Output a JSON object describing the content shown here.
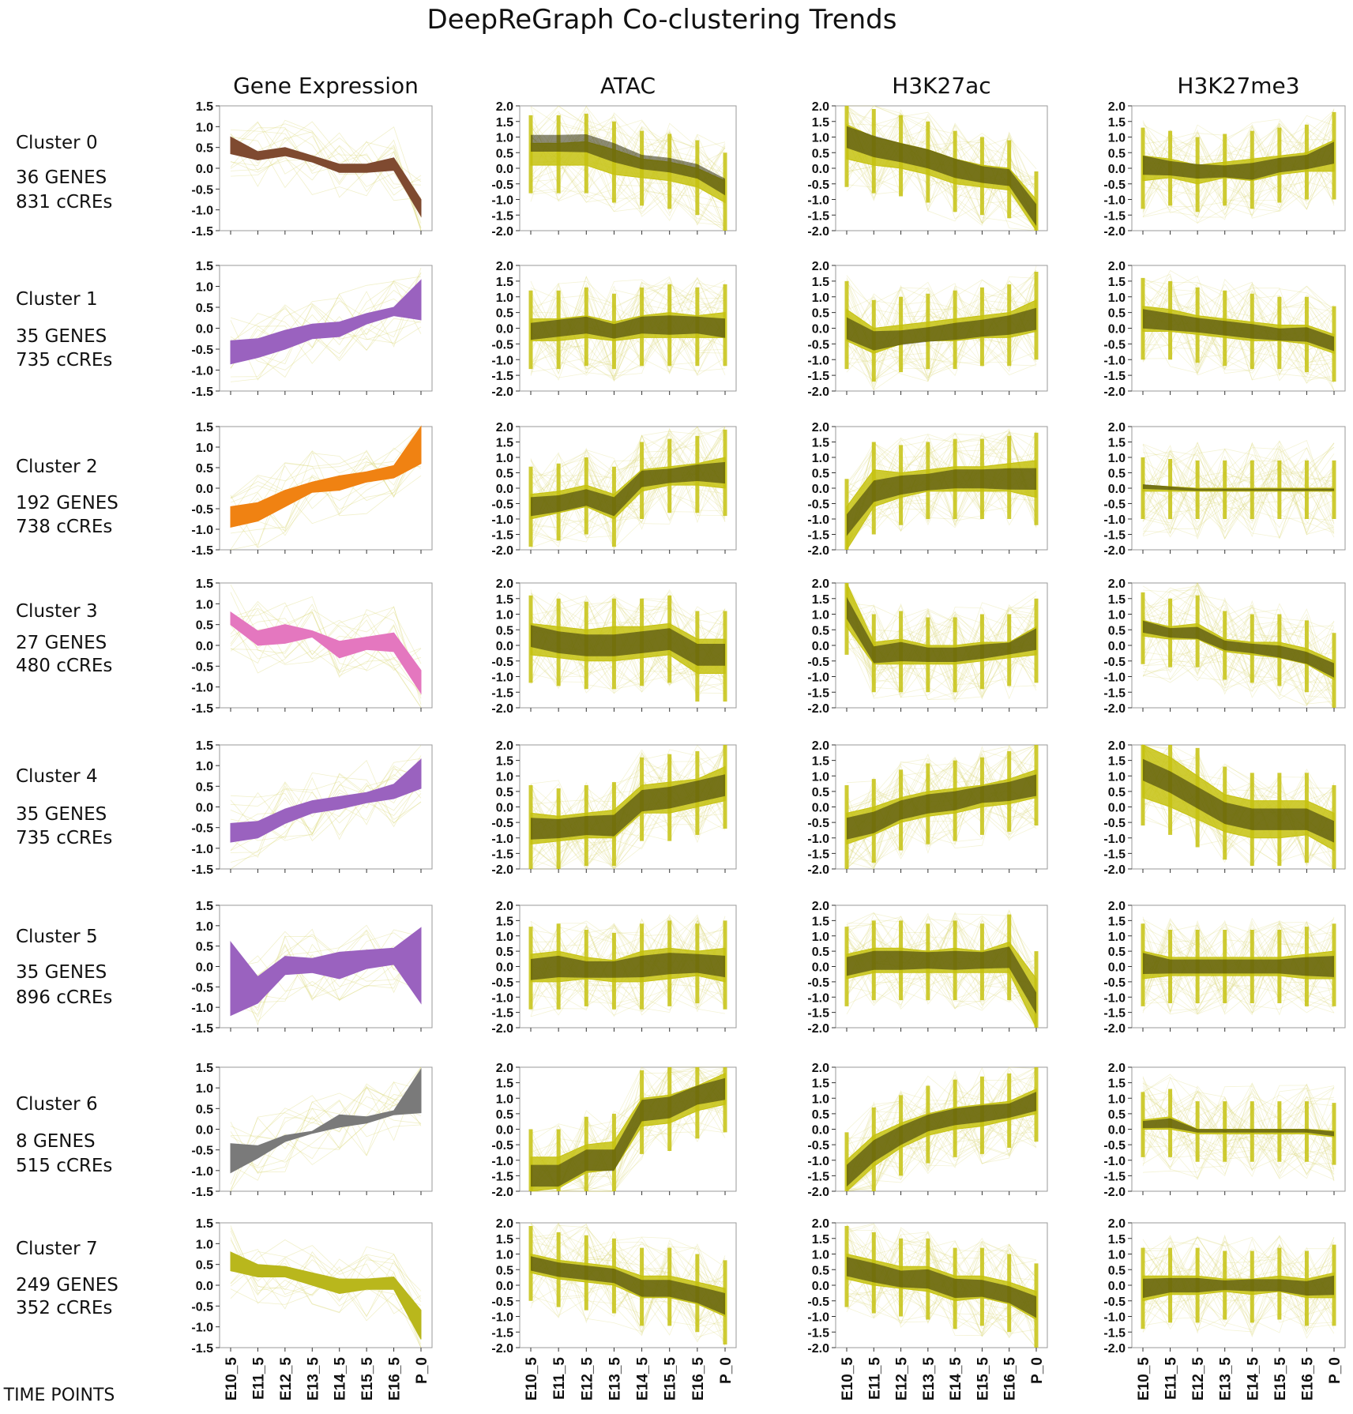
{
  "title": "DeepReGraph Co-clustering Trends",
  "time_points_label": "TIME POINTS",
  "columns": [
    "Gene Expression",
    "ATAC",
    "H3K27ac",
    "H3K27me3"
  ],
  "clusters": [
    {
      "name": "Cluster 0",
      "genes": "36 GENES",
      "ccres": "831 cCREs"
    },
    {
      "name": "Cluster 1",
      "genes": "35 GENES",
      "ccres": "735 cCREs"
    },
    {
      "name": "Cluster 2",
      "genes": "192 GENES",
      "ccres": "738 cCREs"
    },
    {
      "name": "Cluster 3",
      "genes": "27 GENES",
      "ccres": "480 cCREs"
    },
    {
      "name": "Cluster 4",
      "genes": "35 GENES",
      "ccres": "735 cCREs"
    },
    {
      "name": "Cluster 5",
      "genes": "35 GENES",
      "ccres": "896 cCREs"
    },
    {
      "name": "Cluster 6",
      "genes": "8 GENES",
      "ccres": "515 cCREs"
    },
    {
      "name": "Cluster 7",
      "genes": "249 GENES",
      "ccres": "352 cCREs"
    }
  ],
  "colors": {
    "gene": [
      "#7f4a30",
      "#9a62bf",
      "#f08212",
      "#e477bf",
      "#9a62bf",
      "#9a62bf",
      "#7a7a7a",
      "#b9b71c"
    ],
    "epi_light": "#c6c20f",
    "epi_dark": "#2e2c05",
    "trace": "#d8d56a"
  },
  "chart_data": {
    "type": "area",
    "x": [
      "E10_5",
      "E11_5",
      "E12_5",
      "E13_5",
      "E14_5",
      "E15_5",
      "E16_5",
      "P_0"
    ],
    "ylim_gene": [
      -1.5,
      1.5
    ],
    "ylim_epi": [
      -2.0,
      2.0
    ],
    "gene_yticks": [
      "1.5",
      "1.0",
      "0.5",
      "0.0",
      "-0.5",
      "-1.0",
      "-1.5"
    ],
    "epi_yticks": [
      "2.0",
      "1.5",
      "1.0",
      "0.5",
      "0.0",
      "-0.5",
      "-1.0",
      "-1.5",
      "-2.0"
    ],
    "panels": [
      [
        {
          "column": "Gene Expression",
          "lower": [
            0.35,
            0.2,
            0.3,
            0.15,
            -0.1,
            -0.1,
            -0.05,
            -1.15
          ],
          "upper": [
            0.75,
            0.4,
            0.5,
            0.3,
            0.1,
            0.1,
            0.25,
            -0.75
          ]
        },
        {
          "column": "ATAC",
          "lower": [
            0.1,
            0.1,
            0.1,
            -0.2,
            -0.3,
            -0.4,
            -0.6,
            -1.1
          ],
          "upper": [
            0.8,
            0.8,
            0.85,
            0.6,
            0.3,
            0.2,
            0.0,
            -0.4
          ],
          "dark": [
            0.8,
            0.8,
            0.8,
            0.5,
            0.2,
            0.1,
            -0.1,
            -0.6
          ]
        },
        {
          "column": "H3K27ac",
          "lower": [
            0.3,
            0.1,
            0.0,
            -0.2,
            -0.5,
            -0.6,
            -0.7,
            -2.0
          ],
          "upper": [
            1.4,
            1.0,
            0.8,
            0.6,
            0.3,
            0.1,
            0.0,
            -1.0
          ],
          "dark": [
            1.0,
            0.7,
            0.5,
            0.3,
            0.0,
            -0.2,
            -0.3,
            -1.5
          ]
        },
        {
          "column": "H3K27me3",
          "lower": [
            -0.4,
            -0.3,
            -0.5,
            -0.3,
            -0.4,
            -0.2,
            -0.1,
            -0.1
          ],
          "upper": [
            0.4,
            0.3,
            0.1,
            0.2,
            0.3,
            0.4,
            0.5,
            0.9
          ],
          "dark": [
            0.1,
            0.0,
            -0.1,
            -0.1,
            -0.1,
            0.1,
            0.2,
            0.5
          ]
        }
      ],
      [
        {
          "column": "Gene Expression",
          "lower": [
            -0.85,
            -0.7,
            -0.5,
            -0.25,
            -0.2,
            0.1,
            0.3,
            0.2
          ],
          "upper": [
            -0.3,
            -0.25,
            -0.05,
            0.1,
            0.15,
            0.35,
            0.5,
            1.15
          ]
        },
        {
          "column": "ATAC",
          "lower": [
            -0.4,
            -0.4,
            -0.3,
            -0.4,
            -0.3,
            -0.3,
            -0.3,
            -0.3
          ],
          "upper": [
            0.3,
            0.3,
            0.4,
            0.2,
            0.4,
            0.5,
            0.4,
            0.5
          ],
          "dark": [
            -0.1,
            0.0,
            0.1,
            -0.1,
            0.1,
            0.1,
            0.1,
            0.0
          ]
        },
        {
          "column": "H3K27ac",
          "lower": [
            -0.4,
            -0.8,
            -0.5,
            -0.4,
            -0.4,
            -0.3,
            -0.3,
            -0.1
          ],
          "upper": [
            0.6,
            0.0,
            0.1,
            0.2,
            0.3,
            0.4,
            0.5,
            0.9
          ],
          "dark": [
            0.0,
            -0.4,
            -0.3,
            -0.2,
            -0.1,
            0.0,
            0.1,
            0.3
          ]
        },
        {
          "column": "H3K27me3",
          "lower": [
            -0.1,
            -0.1,
            -0.2,
            -0.3,
            -0.4,
            -0.4,
            -0.5,
            -0.8
          ],
          "upper": [
            0.7,
            0.6,
            0.4,
            0.3,
            0.2,
            0.1,
            0.1,
            -0.2
          ],
          "dark": [
            0.3,
            0.2,
            0.1,
            0.0,
            -0.1,
            -0.2,
            -0.2,
            -0.5
          ]
        }
      ],
      [
        {
          "column": "Gene Expression",
          "lower": [
            -0.95,
            -0.8,
            -0.45,
            -0.1,
            -0.05,
            0.15,
            0.25,
            0.6
          ],
          "upper": [
            -0.45,
            -0.35,
            -0.05,
            0.15,
            0.3,
            0.4,
            0.55,
            1.5
          ]
        },
        {
          "column": "ATAC",
          "lower": [
            -1.0,
            -0.8,
            -0.6,
            -1.0,
            -0.1,
            0.1,
            0.1,
            0.0
          ],
          "upper": [
            -0.2,
            -0.1,
            0.1,
            -0.2,
            0.6,
            0.7,
            0.8,
            1.0
          ],
          "dark": [
            -0.6,
            -0.5,
            -0.3,
            -0.6,
            0.3,
            0.4,
            0.5,
            0.5
          ]
        },
        {
          "column": "H3K27ac",
          "lower": [
            -2.0,
            -0.6,
            -0.3,
            -0.1,
            -0.1,
            -0.1,
            -0.1,
            -0.3
          ],
          "upper": [
            -0.6,
            0.6,
            0.5,
            0.6,
            0.7,
            0.7,
            0.8,
            0.9
          ],
          "dark": [
            -1.2,
            -0.1,
            0.1,
            0.2,
            0.3,
            0.3,
            0.3,
            0.3
          ]
        },
        {
          "column": "H3K27me3",
          "lower": [
            -0.1,
            -0.1,
            -0.1,
            -0.1,
            -0.1,
            -0.1,
            -0.1,
            -0.1
          ],
          "upper": [
            0.1,
            0.05,
            0.0,
            0.0,
            0.0,
            0.0,
            0.0,
            0.0
          ],
          "dark": [
            0.05,
            0.0,
            -0.05,
            -0.05,
            -0.05,
            -0.05,
            -0.05,
            -0.05
          ]
        }
      ],
      [
        {
          "column": "Gene Expression",
          "lower": [
            0.5,
            0.0,
            0.05,
            0.2,
            -0.3,
            -0.1,
            -0.15,
            -1.15
          ],
          "upper": [
            0.8,
            0.35,
            0.5,
            0.35,
            0.1,
            0.2,
            0.3,
            -0.6
          ]
        },
        {
          "column": "ATAC",
          "lower": [
            -0.3,
            -0.4,
            -0.5,
            -0.5,
            -0.4,
            -0.3,
            -0.9,
            -0.9
          ],
          "upper": [
            0.7,
            0.6,
            0.5,
            0.6,
            0.6,
            0.7,
            0.2,
            0.2
          ],
          "dark": [
            0.3,
            0.1,
            0.0,
            0.0,
            0.1,
            0.2,
            -0.3,
            -0.3
          ]
        },
        {
          "column": "H3K27ac",
          "lower": [
            0.6,
            -0.6,
            -0.6,
            -0.6,
            -0.6,
            -0.5,
            -0.4,
            -0.3
          ],
          "upper": [
            2.0,
            0.1,
            0.2,
            0.0,
            0.0,
            0.1,
            0.1,
            0.6
          ],
          "dark": [
            1.2,
            -0.3,
            -0.2,
            -0.3,
            -0.3,
            -0.2,
            -0.1,
            0.2
          ]
        },
        {
          "column": "H3K27me3",
          "lower": [
            0.3,
            0.2,
            0.2,
            -0.2,
            -0.3,
            -0.4,
            -0.6,
            -1.1
          ],
          "upper": [
            0.8,
            0.6,
            0.7,
            0.2,
            0.1,
            0.1,
            -0.1,
            -0.5
          ],
          "dark": [
            0.6,
            0.4,
            0.4,
            0.0,
            -0.1,
            -0.2,
            -0.4,
            -0.8
          ]
        }
      ],
      [
        {
          "column": "Gene Expression",
          "lower": [
            -0.85,
            -0.75,
            -0.4,
            -0.15,
            -0.05,
            0.1,
            0.2,
            0.45
          ],
          "upper": [
            -0.4,
            -0.35,
            -0.05,
            0.15,
            0.25,
            0.35,
            0.55,
            1.15
          ]
        },
        {
          "column": "ATAC",
          "lower": [
            -1.2,
            -1.1,
            -1.0,
            -1.0,
            -0.2,
            -0.2,
            0.0,
            0.2
          ],
          "upper": [
            -0.2,
            -0.3,
            -0.2,
            -0.1,
            0.7,
            0.8,
            0.9,
            1.3
          ],
          "dark": [
            -0.7,
            -0.7,
            -0.6,
            -0.6,
            0.2,
            0.3,
            0.5,
            0.7
          ]
        },
        {
          "column": "H3K27ac",
          "lower": [
            -1.2,
            -0.9,
            -0.5,
            -0.3,
            -0.2,
            0.0,
            0.1,
            0.3
          ],
          "upper": [
            -0.2,
            0.0,
            0.3,
            0.5,
            0.6,
            0.7,
            0.9,
            1.2
          ],
          "dark": [
            -0.7,
            -0.5,
            -0.1,
            0.1,
            0.2,
            0.4,
            0.5,
            0.7
          ]
        },
        {
          "column": "H3K27me3",
          "lower": [
            0.3,
            0.0,
            -0.4,
            -0.8,
            -1.0,
            -1.0,
            -0.9,
            -1.4
          ],
          "upper": [
            2.0,
            1.6,
            1.0,
            0.4,
            0.2,
            0.2,
            0.2,
            -0.2
          ],
          "dark": [
            1.2,
            0.8,
            0.3,
            -0.2,
            -0.4,
            -0.4,
            -0.4,
            -0.8
          ]
        }
      ],
      [
        {
          "column": "Gene Expression",
          "lower": [
            -1.2,
            -0.9,
            -0.2,
            -0.15,
            -0.3,
            -0.05,
            0.05,
            -0.9
          ],
          "upper": [
            0.6,
            -0.25,
            0.25,
            0.2,
            0.35,
            0.4,
            0.45,
            0.95
          ]
        },
        {
          "column": "ATAC",
          "lower": [
            -0.5,
            -0.5,
            -0.4,
            -0.5,
            -0.5,
            -0.4,
            -0.3,
            -0.5
          ],
          "upper": [
            0.4,
            0.5,
            0.3,
            0.2,
            0.5,
            0.6,
            0.5,
            0.6
          ],
          "dark": [
            -0.1,
            0.0,
            -0.1,
            -0.1,
            0.0,
            0.1,
            0.1,
            0.0
          ]
        },
        {
          "column": "H3K27ac",
          "lower": [
            -0.4,
            -0.2,
            -0.2,
            -0.2,
            -0.2,
            -0.2,
            -0.2,
            -2.0
          ],
          "upper": [
            0.4,
            0.6,
            0.6,
            0.5,
            0.6,
            0.5,
            0.8,
            -0.4
          ],
          "dark": [
            0.0,
            0.2,
            0.2,
            0.2,
            0.2,
            0.2,
            0.3,
            -1.2
          ]
        },
        {
          "column": "H3K27me3",
          "lower": [
            -0.4,
            -0.3,
            -0.3,
            -0.3,
            -0.3,
            -0.3,
            -0.4,
            -0.4
          ],
          "upper": [
            0.5,
            0.3,
            0.3,
            0.3,
            0.3,
            0.3,
            0.4,
            0.5
          ],
          "dark": [
            0.1,
            0.0,
            0.0,
            0.0,
            0.0,
            0.0,
            0.0,
            0.0
          ]
        }
      ],
      [
        {
          "column": "Gene Expression",
          "lower": [
            -1.05,
            -0.7,
            -0.3,
            -0.1,
            0.05,
            0.15,
            0.35,
            0.4
          ],
          "upper": [
            -0.35,
            -0.4,
            -0.15,
            -0.05,
            0.35,
            0.3,
            0.45,
            1.45
          ]
        },
        {
          "column": "ATAC",
          "lower": [
            -2.0,
            -1.9,
            -1.4,
            -1.3,
            0.1,
            0.2,
            0.6,
            0.8
          ],
          "upper": [
            -0.9,
            -0.9,
            -0.5,
            -0.4,
            1.0,
            1.1,
            1.4,
            1.8
          ],
          "dark": [
            -1.5,
            -1.5,
            -1.0,
            -1.0,
            0.6,
            0.7,
            1.1,
            1.3
          ]
        },
        {
          "column": "H3K27ac",
          "lower": [
            -2.0,
            -1.2,
            -0.6,
            -0.2,
            0.0,
            0.1,
            0.3,
            0.5
          ],
          "upper": [
            -1.0,
            -0.2,
            0.2,
            0.5,
            0.7,
            0.8,
            0.9,
            1.3
          ],
          "dark": [
            -1.5,
            -0.7,
            -0.2,
            0.2,
            0.4,
            0.5,
            0.6,
            0.9
          ]
        },
        {
          "column": "H3K27me3",
          "lower": [
            0.0,
            0.0,
            -0.15,
            -0.15,
            -0.15,
            -0.15,
            -0.15,
            -0.25
          ],
          "upper": [
            0.3,
            0.4,
            0.0,
            0.0,
            0.0,
            0.0,
            0.0,
            -0.05
          ],
          "dark": [
            0.15,
            0.2,
            -0.05,
            -0.05,
            -0.05,
            -0.05,
            -0.05,
            -0.15
          ]
        }
      ],
      [
        {
          "column": "Gene Expression",
          "lower": [
            0.35,
            0.2,
            0.2,
            0.0,
            -0.2,
            -0.1,
            -0.1,
            -1.3
          ],
          "upper": [
            0.8,
            0.5,
            0.45,
            0.3,
            0.15,
            0.15,
            0.2,
            -0.6
          ]
        },
        {
          "column": "ATAC",
          "lower": [
            0.4,
            0.2,
            0.1,
            0.0,
            -0.4,
            -0.4,
            -0.6,
            -1.0
          ],
          "upper": [
            1.0,
            0.8,
            0.7,
            0.6,
            0.3,
            0.3,
            0.1,
            -0.1
          ],
          "dark": [
            0.7,
            0.5,
            0.4,
            0.3,
            -0.1,
            -0.1,
            -0.3,
            -0.6
          ]
        },
        {
          "column": "H3K27ac",
          "lower": [
            0.2,
            0.0,
            -0.1,
            -0.2,
            -0.5,
            -0.4,
            -0.6,
            -1.1
          ],
          "upper": [
            1.0,
            0.8,
            0.6,
            0.6,
            0.3,
            0.3,
            0.1,
            -0.2
          ],
          "dark": [
            0.6,
            0.4,
            0.2,
            0.2,
            -0.1,
            -0.1,
            -0.3,
            -0.7
          ]
        },
        {
          "column": "H3K27me3",
          "lower": [
            -0.5,
            -0.3,
            -0.3,
            -0.2,
            -0.3,
            -0.2,
            -0.4,
            -0.4
          ],
          "upper": [
            0.3,
            0.3,
            0.3,
            0.2,
            0.2,
            0.3,
            0.2,
            0.4
          ],
          "dark": [
            -0.1,
            0.0,
            0.0,
            0.0,
            0.0,
            0.0,
            -0.1,
            0.0
          ]
        }
      ]
    ]
  }
}
